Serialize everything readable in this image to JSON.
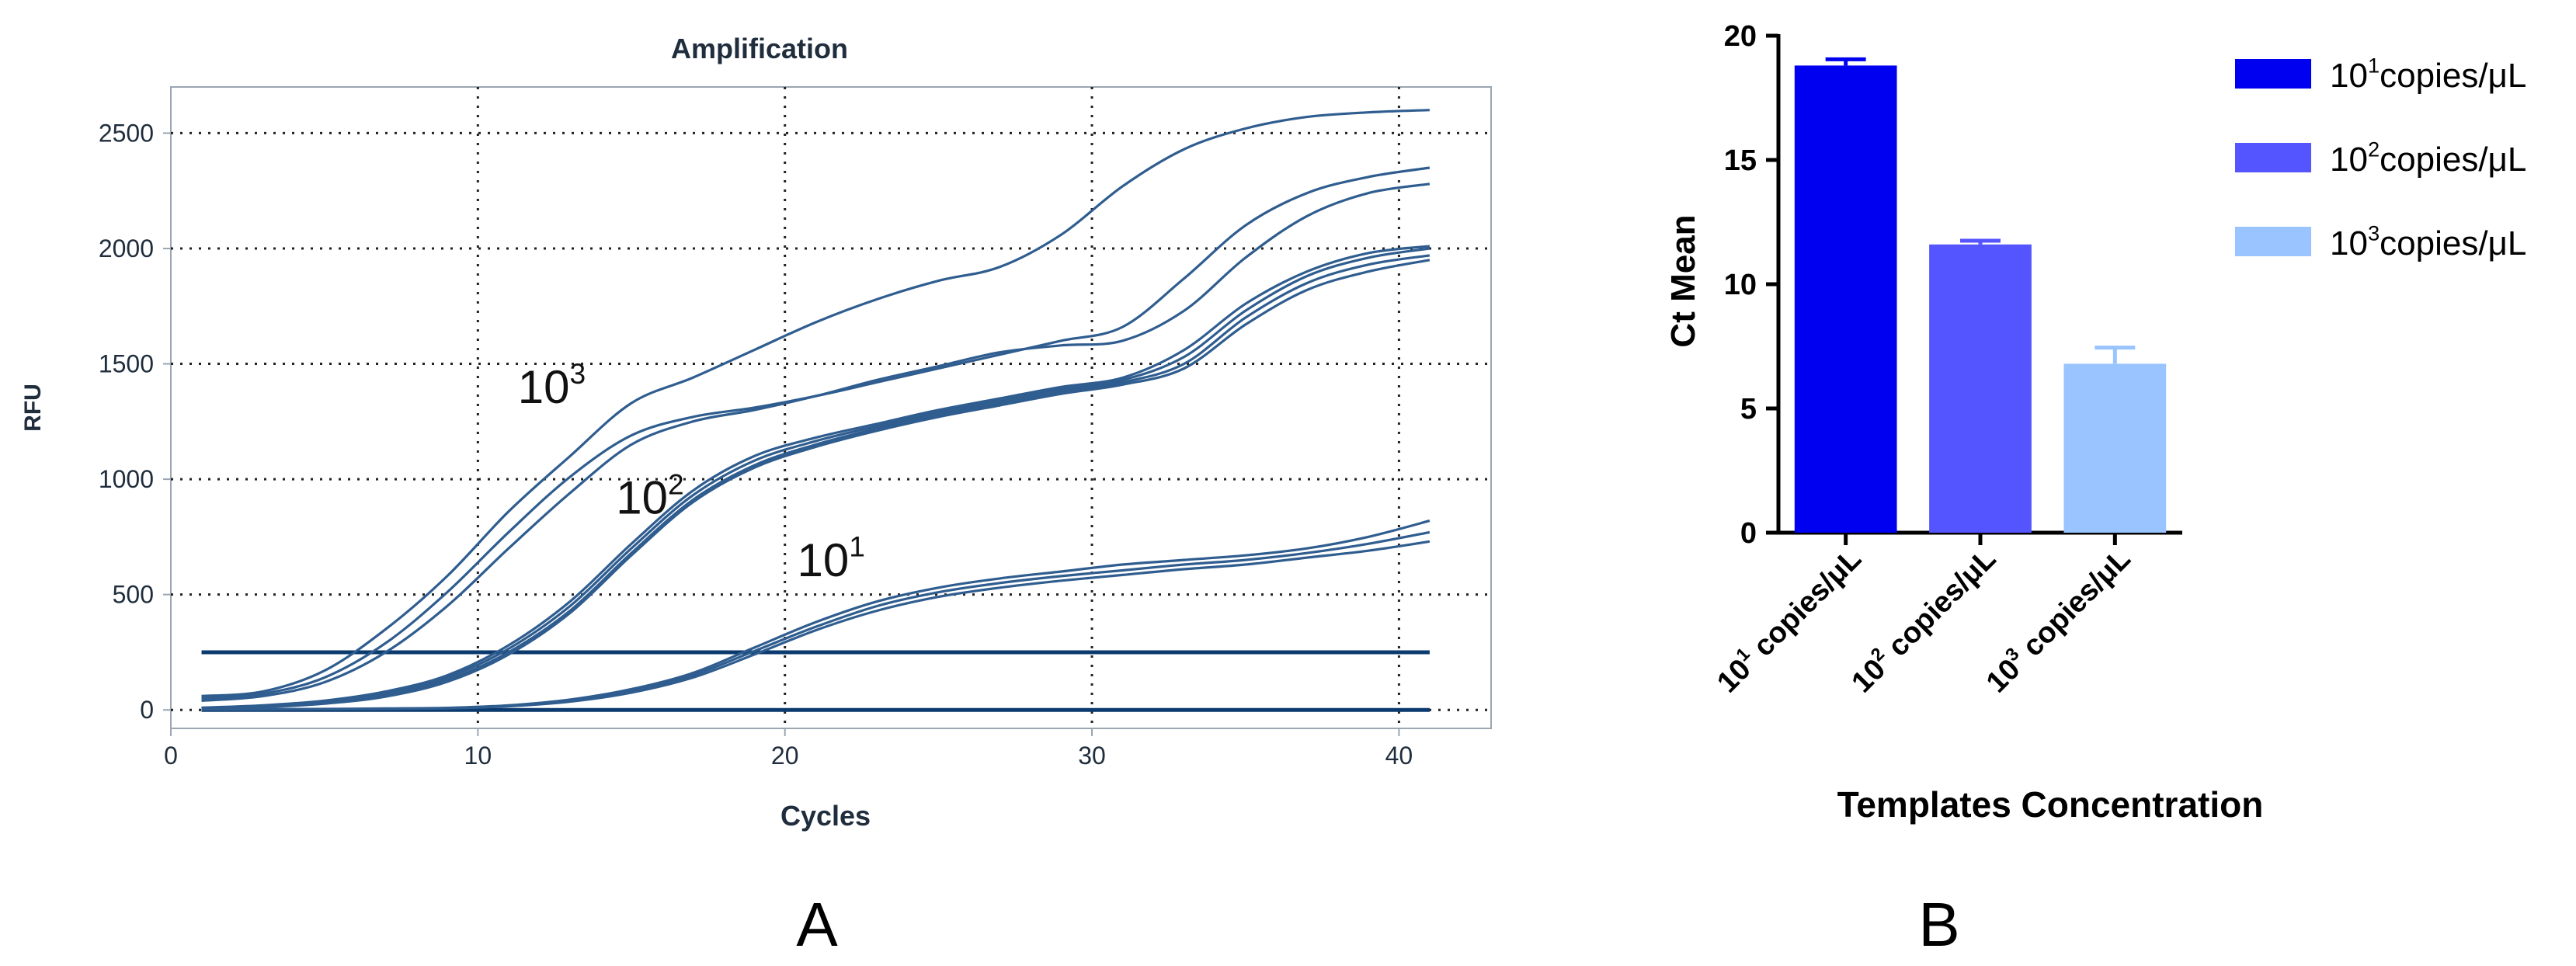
{
  "chart_data": [
    {
      "panel_label": "A",
      "type": "line",
      "title": "Amplification",
      "xlabel": "Cycles",
      "ylabel": "RFU",
      "xlim": [
        0,
        43
      ],
      "ylim": [
        -80,
        2700
      ],
      "xticks": [
        0,
        10,
        20,
        30,
        40
      ],
      "yticks": [
        0,
        500,
        1000,
        1500,
        2000,
        2500
      ],
      "grid": true,
      "line_color": "#2f5d8f",
      "threshold_color": "#0b3a6e",
      "thresholds": [
        250,
        0
      ],
      "annotations": [
        {
          "base": "10",
          "exp": "3",
          "x": 11.3,
          "y": 1330
        },
        {
          "base": "10",
          "exp": "2",
          "x": 14.5,
          "y": 850
        },
        {
          "base": "10",
          "exp": "1",
          "x": 20.4,
          "y": 580
        }
      ],
      "series": [
        {
          "name": "10^3 a",
          "x": [
            1,
            3,
            5,
            7,
            9,
            11,
            13,
            15,
            17,
            19,
            21,
            23,
            25,
            27,
            29,
            31,
            33,
            35,
            37,
            39,
            41
          ],
          "y": [
            60,
            80,
            170,
            350,
            580,
            860,
            1100,
            1330,
            1440,
            1560,
            1680,
            1780,
            1860,
            1920,
            2060,
            2270,
            2430,
            2520,
            2570,
            2590,
            2600
          ]
        },
        {
          "name": "10^3 b",
          "x": [
            1,
            3,
            5,
            7,
            9,
            11,
            13,
            15,
            17,
            19,
            21,
            23,
            25,
            27,
            29,
            31,
            33,
            35,
            37,
            39,
            41
          ],
          "y": [
            50,
            70,
            140,
            290,
            510,
            770,
            1010,
            1190,
            1270,
            1310,
            1360,
            1420,
            1480,
            1540,
            1600,
            1660,
            1870,
            2100,
            2240,
            2310,
            2350
          ]
        },
        {
          "name": "10^3 c",
          "x": [
            1,
            3,
            5,
            7,
            9,
            11,
            13,
            15,
            17,
            19,
            21,
            23,
            25,
            27,
            29,
            31,
            33,
            35,
            37,
            39,
            41
          ],
          "y": [
            40,
            60,
            120,
            250,
            450,
            700,
            940,
            1150,
            1250,
            1300,
            1360,
            1430,
            1490,
            1550,
            1580,
            1600,
            1730,
            1960,
            2140,
            2240,
            2280
          ]
        },
        {
          "name": "10^2 a",
          "x": [
            1,
            3,
            5,
            7,
            9,
            11,
            13,
            15,
            17,
            19,
            21,
            23,
            25,
            27,
            29,
            31,
            33,
            35,
            37,
            39,
            41
          ],
          "y": [
            10,
            20,
            40,
            80,
            150,
            280,
            470,
            720,
            950,
            1100,
            1180,
            1240,
            1300,
            1350,
            1400,
            1440,
            1560,
            1760,
            1900,
            1980,
            2010
          ]
        },
        {
          "name": "10^2 b",
          "x": [
            1,
            3,
            5,
            7,
            9,
            11,
            13,
            15,
            17,
            19,
            21,
            23,
            25,
            27,
            29,
            31,
            33,
            35,
            37,
            39,
            41
          ],
          "y": [
            8,
            16,
            35,
            72,
            140,
            265,
            450,
            700,
            930,
            1080,
            1165,
            1230,
            1290,
            1340,
            1390,
            1430,
            1530,
            1730,
            1880,
            1960,
            2000
          ]
        },
        {
          "name": "10^2 c",
          "x": [
            1,
            3,
            5,
            7,
            9,
            11,
            13,
            15,
            17,
            19,
            21,
            23,
            25,
            27,
            29,
            31,
            33,
            35,
            37,
            39,
            41
          ],
          "y": [
            6,
            14,
            30,
            64,
            130,
            250,
            430,
            680,
            910,
            1060,
            1150,
            1220,
            1280,
            1330,
            1380,
            1420,
            1500,
            1700,
            1850,
            1930,
            1970
          ]
        },
        {
          "name": "10^2 d",
          "x": [
            1,
            3,
            5,
            7,
            9,
            11,
            13,
            15,
            17,
            19,
            21,
            23,
            25,
            27,
            29,
            31,
            33,
            35,
            37,
            39,
            41
          ],
          "y": [
            5,
            12,
            27,
            58,
            122,
            240,
            420,
            670,
            900,
            1050,
            1140,
            1210,
            1270,
            1320,
            1370,
            1410,
            1480,
            1670,
            1820,
            1900,
            1950
          ]
        },
        {
          "name": "10^1 a",
          "x": [
            1,
            3,
            5,
            7,
            9,
            11,
            13,
            15,
            17,
            19,
            21,
            23,
            25,
            27,
            29,
            31,
            33,
            35,
            37,
            39,
            41
          ],
          "y": [
            2,
            3,
            4,
            6,
            9,
            20,
            45,
            90,
            160,
            270,
            380,
            470,
            530,
            570,
            600,
            630,
            650,
            670,
            700,
            750,
            820
          ]
        },
        {
          "name": "10^1 b",
          "x": [
            1,
            3,
            5,
            7,
            9,
            11,
            13,
            15,
            17,
            19,
            21,
            23,
            25,
            27,
            29,
            31,
            33,
            35,
            37,
            39,
            41
          ],
          "y": [
            1,
            2,
            3,
            5,
            8,
            18,
            40,
            82,
            150,
            255,
            360,
            450,
            510,
            550,
            580,
            605,
            630,
            650,
            680,
            720,
            770
          ]
        },
        {
          "name": "10^1 c",
          "x": [
            1,
            3,
            5,
            7,
            9,
            11,
            13,
            15,
            17,
            19,
            21,
            23,
            25,
            27,
            29,
            31,
            33,
            35,
            37,
            39,
            41
          ],
          "y": [
            1,
            2,
            3,
            4,
            7,
            16,
            36,
            75,
            140,
            240,
            345,
            430,
            490,
            530,
            560,
            585,
            610,
            630,
            660,
            690,
            730
          ]
        }
      ]
    },
    {
      "panel_label": "B",
      "type": "bar",
      "title": "",
      "xlabel": "Templates Concentration",
      "ylabel": "Ct Mean",
      "ylim": [
        0,
        20
      ],
      "yticks": [
        0,
        5,
        10,
        15,
        20
      ],
      "categories": [
        {
          "base": "10",
          "exp": "1",
          "suffix": " copies/μL"
        },
        {
          "base": "10",
          "exp": "2",
          "suffix": " copies/μL"
        },
        {
          "base": "10",
          "exp": "3",
          "suffix": " copies/μL"
        }
      ],
      "values": [
        18.8,
        11.6,
        6.8
      ],
      "errors": [
        0.25,
        0.15,
        0.65
      ],
      "colors": [
        "#0000f0",
        "#5555ff",
        "#99c4ff"
      ],
      "legend_placement": "top-right",
      "legend": [
        {
          "base": "10",
          "exp": "1",
          "suffix": "copies/μL"
        },
        {
          "base": "10",
          "exp": "2",
          "suffix": "copies/μL"
        },
        {
          "base": "10",
          "exp": "3",
          "suffix": "copies/μL"
        }
      ]
    }
  ]
}
